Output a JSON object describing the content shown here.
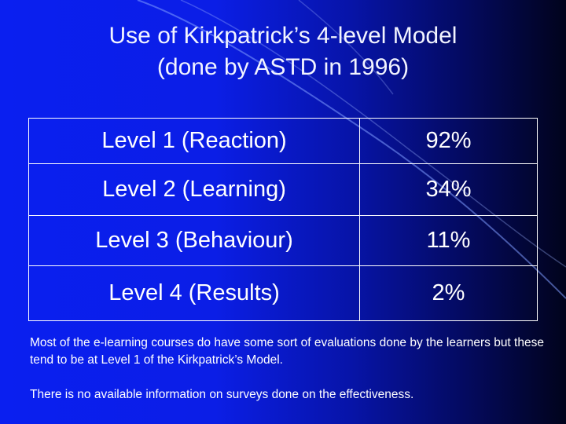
{
  "slide": {
    "title_line1": "Use of Kirkpatrick’s 4-level Model",
    "title_line2": "(done by ASTD in 1996)",
    "table": {
      "rows": [
        {
          "label": "Level 1 (Reaction)",
          "value": "92%"
        },
        {
          "label": "Level 2 (Learning)",
          "value": "34%"
        },
        {
          "label": "Level 3 (Behaviour)",
          "value": "11%"
        },
        {
          "label": "Level 4 (Results)",
          "value": "2%"
        }
      ]
    },
    "notes": [
      "Most of the e-learning courses do have some sort of evaluations done by the learners but these tend to be at Level 1 of the Kirkpatrick’s Model.",
      "There is no available information on surveys done on the effectiveness."
    ]
  },
  "colors": {
    "background_start": "#0a1ff0",
    "background_end": "#01031c",
    "text": "#ffffff",
    "decor_curve": "#7f9cff"
  }
}
